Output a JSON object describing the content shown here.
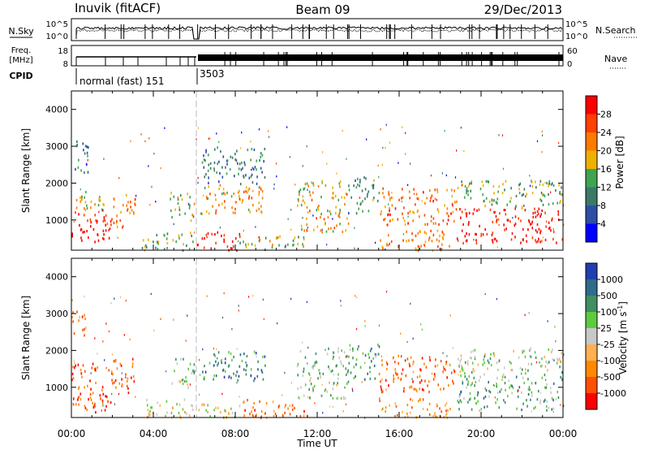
{
  "header": {
    "title": "Inuvik (fitACF)",
    "beam": "Beam 09",
    "date": "29/Dec/2013"
  },
  "panels": {
    "nsky": {
      "label": "N.Sky",
      "right_label": "N.Search",
      "left_ticks": [
        "10^5",
        "10^0"
      ],
      "right_ticks": [
        "10^5",
        "10^0"
      ]
    },
    "freq": {
      "label_line1": "Freq.",
      "label_line2": "[MHz]",
      "right_label": "Nave",
      "left_ticks": [
        "18",
        "8"
      ],
      "right_ticks": [
        "60",
        "0"
      ]
    },
    "cpid": {
      "label": "CPID",
      "segments": [
        {
          "start_hour": 0,
          "text": "normal (fast) 151"
        },
        {
          "start_hour": 6.1,
          "text": "3503"
        }
      ]
    }
  },
  "colors": {
    "power": [
      "#0000ff",
      "#2e4ea6",
      "#3c7a68",
      "#3fa450",
      "#eeb100",
      "#ff7a00",
      "#ff4000",
      "#ff0000"
    ],
    "velocity": [
      "#ff0000",
      "#ff5000",
      "#ff8a00",
      "#ffb050",
      "#c8c8c8",
      "#5ecb3e",
      "#3f8f63",
      "#2f6c8a",
      "#1f3fb0"
    ]
  },
  "chart_data": [
    {
      "type": "heatmap",
      "name": "power",
      "xlabel": "Time UT",
      "ylabel": "Slant Range [km]",
      "x_ticks": [
        "00:00",
        "04:00",
        "08:00",
        "12:00",
        "16:00",
        "20:00",
        "00:00"
      ],
      "x_range_hours": [
        0,
        24
      ],
      "y_ticks": [
        1000,
        2000,
        3000,
        4000
      ],
      "ylim": [
        180,
        4500
      ],
      "colorbar": {
        "label": "Power [dB]",
        "ticks": [
          "4",
          "8",
          "12",
          "16",
          "20",
          "24",
          "28"
        ],
        "range": [
          0,
          32
        ]
      },
      "blobs": [
        {
          "t0": 0.0,
          "t1": 1.9,
          "r0": 350,
          "r1": 1300,
          "level": 0.92
        },
        {
          "t0": 0.0,
          "t1": 1.9,
          "r0": 1300,
          "r1": 1800,
          "level": 0.55
        },
        {
          "t0": 0.0,
          "t1": 0.8,
          "r0": 2300,
          "r1": 3200,
          "level": 0.25
        },
        {
          "t0": 1.9,
          "t1": 3.1,
          "r0": 800,
          "r1": 1800,
          "level": 0.7
        },
        {
          "t0": 3.4,
          "t1": 6.0,
          "r0": 200,
          "r1": 700,
          "level": 0.45
        },
        {
          "t0": 4.8,
          "t1": 6.0,
          "r0": 1000,
          "r1": 1800,
          "level": 0.5
        },
        {
          "t0": 6.1,
          "t1": 8.2,
          "r0": 200,
          "r1": 700,
          "level": 0.92
        },
        {
          "t0": 6.3,
          "t1": 9.5,
          "r0": 1200,
          "r1": 2000,
          "level": 0.65
        },
        {
          "t0": 6.3,
          "t1": 9.5,
          "r0": 2000,
          "r1": 3000,
          "level": 0.3
        },
        {
          "t0": 8.2,
          "t1": 11.5,
          "r0": 200,
          "r1": 600,
          "level": 0.5
        },
        {
          "t0": 11.0,
          "t1": 13.5,
          "r0": 700,
          "r1": 2100,
          "level": 0.6
        },
        {
          "t0": 13.5,
          "t1": 15.0,
          "r0": 1200,
          "r1": 2200,
          "level": 0.35
        },
        {
          "t0": 15.0,
          "t1": 18.8,
          "r0": 900,
          "r1": 1900,
          "level": 0.75
        },
        {
          "t0": 15.0,
          "t1": 18.5,
          "r0": 200,
          "r1": 750,
          "level": 0.7
        },
        {
          "t0": 18.8,
          "t1": 24.0,
          "r0": 400,
          "r1": 1350,
          "level": 0.92
        },
        {
          "t0": 18.8,
          "t1": 24.0,
          "r0": 1350,
          "r1": 2100,
          "level": 0.45
        }
      ]
    },
    {
      "type": "heatmap",
      "name": "velocity",
      "xlabel": "Time UT",
      "ylabel": "Slant Range [km]",
      "x_ticks": [
        "00:00",
        "04:00",
        "08:00",
        "12:00",
        "16:00",
        "20:00",
        "00:00"
      ],
      "x_range_hours": [
        0,
        24
      ],
      "y_ticks": [
        1000,
        2000,
        3000,
        4000
      ],
      "ylim": [
        180,
        4500
      ],
      "colorbar": {
        "label": "Velocity [m s^-1]",
        "ticks": [
          "1000",
          "500",
          "100",
          "25",
          "-25",
          "-100",
          "-500",
          "-1000"
        ],
        "range": [
          -1000,
          1000
        ]
      },
      "blobs": [
        {
          "t0": 0.0,
          "t1": 1.9,
          "r0": 350,
          "r1": 1700,
          "level": 0.15
        },
        {
          "t0": 1.9,
          "t1": 3.1,
          "r0": 800,
          "r1": 1800,
          "level": 0.15
        },
        {
          "t0": 0.0,
          "t1": 0.7,
          "r0": 2400,
          "r1": 3200,
          "level": 0.25
        },
        {
          "t0": 3.4,
          "t1": 6.0,
          "r0": 200,
          "r1": 700,
          "level": 0.45
        },
        {
          "t0": 4.8,
          "t1": 6.0,
          "r0": 1000,
          "r1": 1800,
          "level": 0.6
        },
        {
          "t0": 6.1,
          "t1": 8.2,
          "r0": 200,
          "r1": 600,
          "level": 0.45
        },
        {
          "t0": 6.3,
          "t1": 9.5,
          "r0": 1200,
          "r1": 2000,
          "level": 0.75
        },
        {
          "t0": 8.2,
          "t1": 11.5,
          "r0": 200,
          "r1": 700,
          "level": 0.25
        },
        {
          "t0": 11.0,
          "t1": 13.5,
          "r0": 700,
          "r1": 2100,
          "level": 0.6
        },
        {
          "t0": 13.5,
          "t1": 15.0,
          "r0": 1200,
          "r1": 2200,
          "level": 0.7
        },
        {
          "t0": 15.0,
          "t1": 18.8,
          "r0": 900,
          "r1": 1900,
          "level": 0.2
        },
        {
          "t0": 15.0,
          "t1": 18.5,
          "r0": 200,
          "r1": 750,
          "level": 0.3
        },
        {
          "t0": 18.8,
          "t1": 24.0,
          "r0": 400,
          "r1": 1350,
          "level": 0.65
        },
        {
          "t0": 18.8,
          "t1": 24.0,
          "r0": 1350,
          "r1": 2100,
          "level": 0.55
        }
      ]
    }
  ]
}
